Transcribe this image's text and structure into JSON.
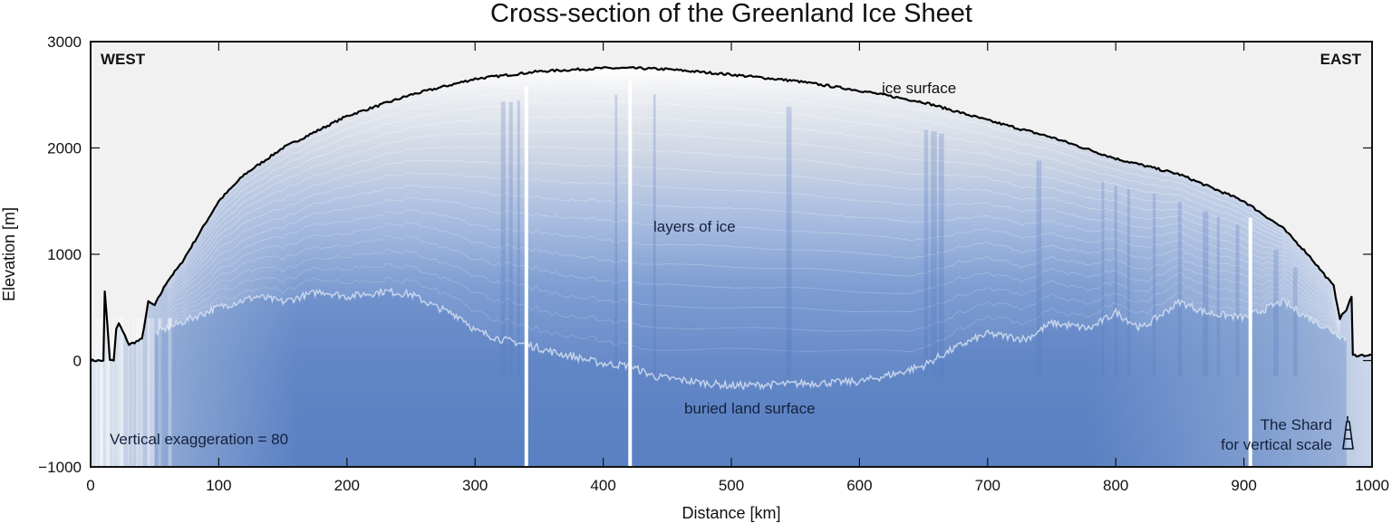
{
  "chart_data": {
    "type": "area",
    "title": "Cross-section of the Greenland Ice Sheet",
    "xlabel": "Distance [km]",
    "ylabel": "Elevation [m]",
    "xlim": [
      0,
      1000
    ],
    "ylim": [
      -1000,
      3000
    ],
    "x_ticks": [
      0,
      100,
      200,
      300,
      400,
      500,
      600,
      700,
      800,
      900,
      1000
    ],
    "y_ticks": [
      -1000,
      0,
      1000,
      2000,
      3000
    ],
    "y_tick_labels": [
      "−1000",
      "0",
      "1000",
      "2000",
      "3000"
    ],
    "grid": false,
    "legend": null,
    "series": [
      {
        "name": "ice surface",
        "style": "black line",
        "x": [
          0,
          10,
          11,
          13,
          15,
          18,
          20,
          22,
          30,
          40,
          45,
          50,
          60,
          70,
          80,
          100,
          120,
          150,
          200,
          250,
          300,
          350,
          400,
          425,
          450,
          500,
          550,
          600,
          650,
          700,
          750,
          800,
          850,
          870,
          900,
          930,
          950,
          970,
          975,
          980,
          984,
          985,
          1000
        ],
        "values": [
          0,
          0,
          650,
          350,
          0,
          0,
          300,
          350,
          150,
          200,
          550,
          520,
          750,
          900,
          1100,
          1500,
          1750,
          2000,
          2300,
          2500,
          2650,
          2720,
          2750,
          2750,
          2740,
          2690,
          2630,
          2540,
          2430,
          2260,
          2100,
          1900,
          1750,
          1650,
          1500,
          1250,
          1000,
          700,
          400,
          480,
          600,
          50,
          50
        ]
      },
      {
        "name": "buried land surface",
        "style": "bright reflector",
        "x": [
          50,
          100,
          130,
          150,
          180,
          200,
          230,
          250,
          270,
          290,
          300,
          320,
          340,
          360,
          400,
          420,
          440,
          470,
          500,
          550,
          600,
          630,
          650,
          660,
          680,
          700,
          730,
          750,
          780,
          800,
          820,
          850,
          870,
          900,
          930,
          950,
          980
        ],
        "values": [
          250,
          500,
          600,
          550,
          650,
          600,
          650,
          620,
          500,
          400,
          280,
          200,
          150,
          80,
          -30,
          -50,
          -150,
          -200,
          -240,
          -220,
          -200,
          -120,
          -50,
          20,
          150,
          250,
          200,
          350,
          300,
          450,
          300,
          550,
          450,
          400,
          550,
          400,
          200
        ]
      }
    ],
    "data_gaps_km": [
      340,
      421,
      905
    ],
    "annotations": [
      {
        "text": "WEST",
        "position": "top-left"
      },
      {
        "text": "EAST",
        "position": "top-right"
      },
      {
        "text": "ice surface",
        "x": 625,
        "y": 2580
      },
      {
        "text": "layers of ice",
        "x": 480,
        "y": 1270
      },
      {
        "text": "buried land surface",
        "x": 545,
        "y": -450
      },
      {
        "text": "Vertical exaggeration = 80",
        "x": 15,
        "y": -730
      },
      {
        "text": "The Shard",
        "x": 965,
        "y": -600
      },
      {
        "text": "for vertical scale",
        "x": 965,
        "y": -780
      }
    ]
  },
  "labels": {
    "title": "Cross-section of the Greenland Ice Sheet",
    "xlabel": "Distance [km]",
    "ylabel": "Elevation [m]",
    "west": "WEST",
    "east": "EAST",
    "ice_surface": "ice surface",
    "layers": "layers of ice",
    "bed": "buried land surface",
    "exaggeration": "Vertical exaggeration = 80",
    "shard_line1": "The Shard",
    "shard_line2": "for vertical scale"
  },
  "colors": {
    "background": "#f1f1f1",
    "deep_ice": "#5b82c4",
    "mid_ice": "#9fb6dc",
    "shallow_ice": "#d9dee6",
    "surface_line": "#000000"
  }
}
